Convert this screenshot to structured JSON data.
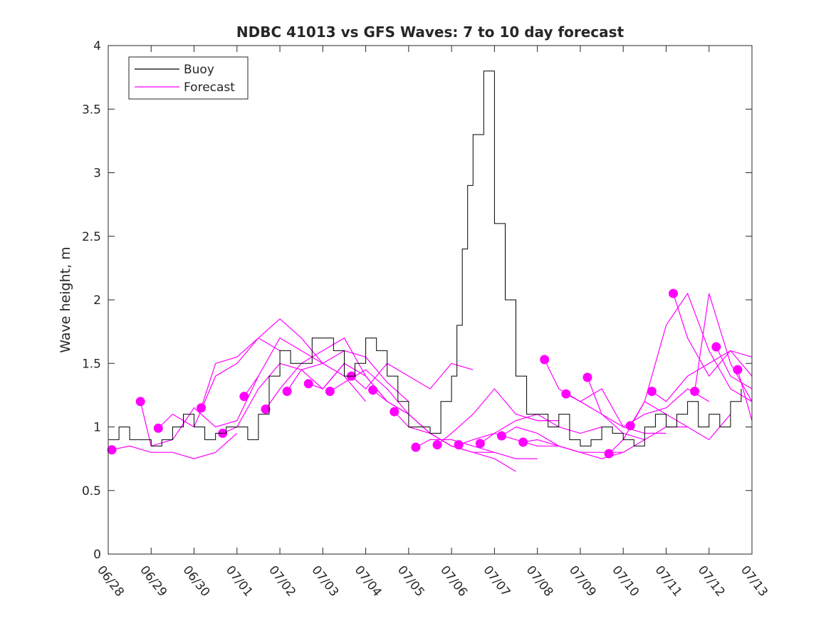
{
  "chart_data": {
    "type": "line",
    "title": "NDBC 41013 vs GFS Waves: 7 to 10 day forecast",
    "xlabel": "",
    "ylabel": "Wave height, m",
    "ylim": [
      0,
      4
    ],
    "xlim": [
      "06/28",
      "07/13"
    ],
    "x_tick_labels": [
      "06/28",
      "06/29",
      "06/30",
      "07/01",
      "07/02",
      "07/03",
      "07/04",
      "07/05",
      "07/06",
      "07/07",
      "07/08",
      "07/09",
      "07/10",
      "07/11",
      "07/12",
      "07/13"
    ],
    "y_tick_labels": [
      "0",
      "0.5",
      "1",
      "1.5",
      "2",
      "2.5",
      "3",
      "3.5",
      "4"
    ],
    "legend": {
      "position": "top-left",
      "entries": [
        "Buoy",
        "Forecast"
      ]
    },
    "grid": false,
    "colors": {
      "buoy": "#000000",
      "forecast": "#ff00ff"
    },
    "series": [
      {
        "name": "Buoy",
        "x": [
          "06/28 00:00",
          "06/28 06:00",
          "06/28 12:00",
          "06/28 18:00",
          "06/29 00:00",
          "06/29 06:00",
          "06/29 12:00",
          "06/29 18:00",
          "06/30 00:00",
          "06/30 06:00",
          "06/30 12:00",
          "06/30 18:00",
          "07/01 00:00",
          "07/01 06:00",
          "07/01 12:00",
          "07/01 18:00",
          "07/02 00:00",
          "07/02 06:00",
          "07/02 12:00",
          "07/02 18:00",
          "07/03 00:00",
          "07/03 06:00",
          "07/03 12:00",
          "07/03 18:00",
          "07/04 00:00",
          "07/04 06:00",
          "07/04 12:00",
          "07/04 18:00",
          "07/05 00:00",
          "07/05 06:00",
          "07/05 12:00",
          "07/05 18:00",
          "07/06 00:00",
          "07/06 03:00",
          "07/06 06:00",
          "07/06 09:00",
          "07/06 12:00",
          "07/06 18:00",
          "07/07 00:00",
          "07/07 06:00",
          "07/07 12:00",
          "07/07 18:00",
          "07/08 00:00",
          "07/08 06:00",
          "07/08 12:00",
          "07/08 18:00",
          "07/09 00:00",
          "07/09 06:00",
          "07/09 12:00",
          "07/09 18:00",
          "07/10 00:00",
          "07/10 06:00",
          "07/10 12:00",
          "07/10 18:00",
          "07/11 00:00",
          "07/11 06:00",
          "07/11 12:00",
          "07/11 18:00",
          "07/12 00:00",
          "07/12 06:00",
          "07/12 12:00",
          "07/12 18:00"
        ],
        "values": [
          0.9,
          1.0,
          0.9,
          0.9,
          0.85,
          0.9,
          1.0,
          1.1,
          1.0,
          0.9,
          0.95,
          1.0,
          1.0,
          0.9,
          1.1,
          1.4,
          1.6,
          1.5,
          1.5,
          1.7,
          1.7,
          1.6,
          1.4,
          1.5,
          1.7,
          1.6,
          1.4,
          1.2,
          1.0,
          1.0,
          0.95,
          1.2,
          1.4,
          1.8,
          2.4,
          2.9,
          3.3,
          3.8,
          2.6,
          2.0,
          1.4,
          1.1,
          1.1,
          1.0,
          1.1,
          0.9,
          0.85,
          0.9,
          1.0,
          0.95,
          0.9,
          0.85,
          1.0,
          1.1,
          1.0,
          1.1,
          1.2,
          1.0,
          1.1,
          1.0,
          1.2,
          1.3
        ]
      },
      {
        "name": "",
        "x": [
          "06/28 02:00",
          "06/28 12:00",
          "06/29 00:00",
          "06/29 12:00",
          "06/30 00:00",
          "06/30 12:00",
          "07/01 00:00"
        ],
        "values": [
          0.82,
          0.85,
          0.8,
          0.8,
          0.75,
          0.8,
          0.95
        ]
      },
      {
        "name": "",
        "x": [
          "06/28 18:00",
          "06/29 00:00",
          "06/29 12:00",
          "06/30 00:00",
          "06/30 12:00",
          "07/01 00:00",
          "07/01 12:00"
        ],
        "values": [
          1.2,
          0.85,
          0.9,
          1.15,
          1.0,
          1.05,
          1.4
        ]
      },
      {
        "name": "",
        "x": [
          "06/29 04:00",
          "06/29 12:00",
          "06/30 00:00",
          "06/30 12:00",
          "07/01 00:00",
          "07/01 12:00",
          "07/02 00:00"
        ],
        "values": [
          0.99,
          1.1,
          1.0,
          1.4,
          1.5,
          1.7,
          1.6
        ]
      },
      {
        "name": "",
        "x": [
          "06/30 04:00",
          "06/30 12:00",
          "07/01 00:00",
          "07/01 12:00",
          "07/02 00:00",
          "07/02 12:00",
          "07/03 00:00"
        ],
        "values": [
          1.15,
          1.5,
          1.55,
          1.7,
          1.85,
          1.7,
          1.5
        ]
      },
      {
        "name": "",
        "x": [
          "06/30 16:00",
          "07/01 00:00",
          "07/01 12:00",
          "07/02 00:00",
          "07/02 12:00",
          "07/03 00:00",
          "07/03 12:00"
        ],
        "values": [
          0.95,
          1.0,
          1.3,
          1.5,
          1.45,
          1.3,
          1.5
        ]
      },
      {
        "name": "",
        "x": [
          "07/01 04:00",
          "07/01 12:00",
          "07/02 00:00",
          "07/02 12:00",
          "07/03 00:00",
          "07/03 12:00",
          "07/04 00:00"
        ],
        "values": [
          1.24,
          1.4,
          1.7,
          1.6,
          1.5,
          1.4,
          1.2
        ]
      },
      {
        "name": "",
        "x": [
          "07/01 16:00",
          "07/02 00:00",
          "07/02 12:00",
          "07/03 00:00",
          "07/03 12:00",
          "07/04 00:00",
          "07/04 12:00"
        ],
        "values": [
          1.14,
          1.3,
          1.5,
          1.6,
          1.7,
          1.4,
          1.2
        ]
      },
      {
        "name": "",
        "x": [
          "07/02 04:00",
          "07/02 12:00",
          "07/03 00:00",
          "07/03 12:00",
          "07/04 00:00",
          "07/04 12:00",
          "07/05 00:00"
        ],
        "values": [
          1.28,
          1.45,
          1.5,
          1.6,
          1.55,
          1.35,
          1.2
        ]
      },
      {
        "name": "",
        "x": [
          "07/02 16:00",
          "07/03 00:00",
          "07/03 12:00",
          "07/04 00:00",
          "07/04 12:00",
          "07/05 00:00",
          "07/05 12:00"
        ],
        "values": [
          1.34,
          1.3,
          1.5,
          1.4,
          1.2,
          1.1,
          0.95
        ]
      },
      {
        "name": "",
        "x": [
          "07/03 04:00",
          "07/03 12:00",
          "07/04 00:00",
          "07/04 12:00",
          "07/05 00:00",
          "07/05 12:00",
          "07/06 00:00"
        ],
        "values": [
          1.28,
          1.35,
          1.45,
          1.3,
          1.1,
          0.95,
          0.85
        ]
      },
      {
        "name": "",
        "x": [
          "07/03 16:00",
          "07/04 00:00",
          "07/04 12:00",
          "07/05 00:00",
          "07/05 12:00",
          "07/06 00:00",
          "07/06 12:00"
        ],
        "values": [
          1.4,
          1.3,
          1.5,
          1.4,
          1.3,
          1.5,
          1.45
        ]
      },
      {
        "name": "",
        "x": [
          "07/04 04:00",
          "07/04 12:00",
          "07/05 00:00",
          "07/05 12:00",
          "07/06 00:00",
          "07/06 12:00",
          "07/07 00:00"
        ],
        "values": [
          1.29,
          1.2,
          1.1,
          0.95,
          0.85,
          0.8,
          0.8
        ]
      },
      {
        "name": "",
        "x": [
          "07/04 16:00",
          "07/05 00:00",
          "07/05 12:00",
          "07/06 00:00",
          "07/06 12:00",
          "07/07 00:00",
          "07/07 12:00"
        ],
        "values": [
          1.12,
          1.0,
          0.95,
          0.85,
          0.8,
          0.75,
          0.65
        ]
      },
      {
        "name": "",
        "x": [
          "07/05 04:00",
          "07/05 12:00",
          "07/06 00:00",
          "07/06 12:00",
          "07/07 00:00",
          "07/07 12:00",
          "07/08 00:00"
        ],
        "values": [
          0.84,
          0.9,
          0.9,
          0.85,
          0.8,
          0.75,
          0.75
        ]
      },
      {
        "name": "",
        "x": [
          "07/05 16:00",
          "07/06 00:00",
          "07/06 12:00",
          "07/07 00:00",
          "07/07 12:00",
          "07/08 00:00",
          "07/08 12:00"
        ],
        "values": [
          0.86,
          0.95,
          1.1,
          1.3,
          1.1,
          1.05,
          1.05
        ]
      },
      {
        "name": "",
        "x": [
          "07/06 04:00",
          "07/06 12:00",
          "07/07 00:00",
          "07/07 12:00",
          "07/08 00:00",
          "07/08 12:00",
          "07/09 00:00"
        ],
        "values": [
          0.86,
          0.9,
          0.95,
          0.9,
          0.85,
          0.85,
          0.8
        ]
      },
      {
        "name": "",
        "x": [
          "07/06 16:00",
          "07/07 00:00",
          "07/07 12:00",
          "07/08 00:00",
          "07/08 12:00",
          "07/09 00:00",
          "07/09 12:00"
        ],
        "values": [
          0.87,
          0.95,
          1.05,
          1.1,
          1.0,
          0.95,
          1.0
        ]
      },
      {
        "name": "",
        "x": [
          "07/07 04:00",
          "07/07 12:00",
          "07/08 00:00",
          "07/08 12:00",
          "07/09 00:00",
          "07/09 12:00",
          "07/10 00:00"
        ],
        "values": [
          0.93,
          1.0,
          0.95,
          0.85,
          0.8,
          0.8,
          0.8
        ]
      },
      {
        "name": "",
        "x": [
          "07/07 16:00",
          "07/08 00:00",
          "07/08 12:00",
          "07/09 00:00",
          "07/09 12:00",
          "07/10 00:00",
          "07/10 12:00"
        ],
        "values": [
          0.88,
          0.9,
          0.85,
          0.8,
          0.75,
          0.8,
          0.9
        ]
      },
      {
        "name": "",
        "x": [
          "07/08 04:00",
          "07/08 12:00",
          "07/09 00:00",
          "07/09 12:00",
          "07/10 00:00",
          "07/10 12:00",
          "07/11 00:00"
        ],
        "values": [
          1.53,
          1.3,
          1.2,
          1.3,
          1.0,
          0.95,
          0.95
        ]
      },
      {
        "name": "",
        "x": [
          "07/08 16:00",
          "07/09 00:00",
          "07/09 12:00",
          "07/10 00:00",
          "07/10 12:00",
          "07/11 00:00",
          "07/11 12:00"
        ],
        "values": [
          1.26,
          1.2,
          1.1,
          0.95,
          0.9,
          1.0,
          1.0
        ]
      },
      {
        "name": "",
        "x": [
          "07/09 04:00",
          "07/09 12:00",
          "07/10 00:00",
          "07/10 12:00",
          "07/11 00:00",
          "07/11 12:00",
          "07/12 00:00"
        ],
        "values": [
          1.39,
          1.1,
          1.0,
          1.1,
          1.15,
          1.3,
          1.2
        ]
      },
      {
        "name": "",
        "x": [
          "07/09 16:00",
          "07/10 00:00",
          "07/10 12:00",
          "07/11 00:00",
          "07/11 12:00",
          "07/12 00:00",
          "07/12 12:00"
        ],
        "values": [
          0.79,
          0.9,
          1.2,
          1.1,
          1.0,
          0.9,
          1.1
        ]
      },
      {
        "name": "",
        "x": [
          "07/10 04:00",
          "07/10 12:00",
          "07/11 00:00",
          "07/11 12:00",
          "07/12 00:00",
          "07/12 12:00",
          "07/13 00:00"
        ],
        "values": [
          1.01,
          1.2,
          1.8,
          2.05,
          1.6,
          1.3,
          1.2
        ]
      },
      {
        "name": "",
        "x": [
          "07/10 16:00",
          "07/11 00:00",
          "07/11 12:00",
          "07/12 00:00",
          "07/12 12:00",
          "07/13 00:00"
        ],
        "values": [
          1.28,
          1.2,
          1.4,
          1.5,
          1.6,
          1.4
        ]
      },
      {
        "name": "",
        "x": [
          "07/11 04:00",
          "07/11 12:00",
          "07/12 00:00",
          "07/12 12:00",
          "07/13 00:00"
        ],
        "values": [
          2.05,
          1.7,
          1.4,
          1.6,
          1.55
        ]
      },
      {
        "name": "",
        "x": [
          "07/11 16:00",
          "07/12 00:00",
          "07/12 12:00",
          "07/13 00:00"
        ],
        "values": [
          1.28,
          2.05,
          1.5,
          1.2
        ]
      },
      {
        "name": "",
        "x": [
          "07/12 04:00",
          "07/12 12:00",
          "07/13 00:00"
        ],
        "values": [
          1.63,
          1.4,
          1.3
        ]
      },
      {
        "name": "",
        "x": [
          "07/12 16:00",
          "07/13 00:00"
        ],
        "values": [
          1.45,
          1.05
        ]
      }
    ]
  }
}
